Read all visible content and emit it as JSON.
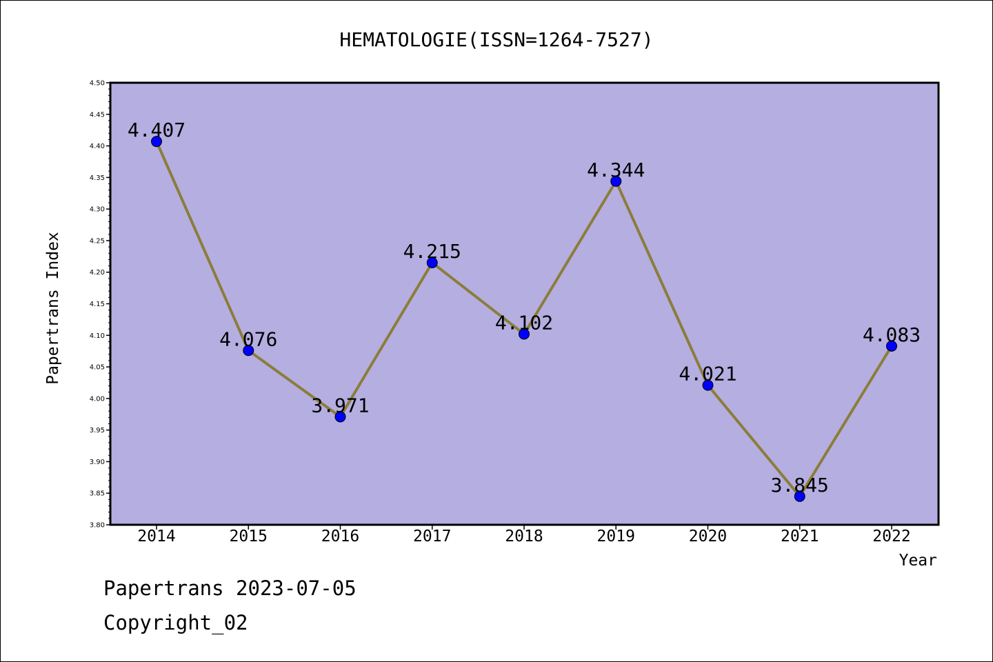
{
  "chart_data": {
    "type": "line",
    "title": "HEMATOLOGIE(ISSN=1264-7527)",
    "xlabel": "Year",
    "ylabel": "Papertrans Index",
    "categories": [
      "2014",
      "2015",
      "2016",
      "2017",
      "2018",
      "2019",
      "2020",
      "2021",
      "2022"
    ],
    "series": [
      {
        "values": [
          4.407,
          4.076,
          3.971,
          4.215,
          4.102,
          4.344,
          4.021,
          3.845,
          4.083
        ],
        "data_labels": [
          "4.407",
          "4.076",
          "3.971",
          "4.215",
          "4.102",
          "4.344",
          "4.021",
          "3.845",
          "4.083"
        ]
      }
    ],
    "ylim": [
      3.8,
      4.5
    ],
    "yticks": [
      "3.80",
      "3.85",
      "3.90",
      "3.95",
      "4.00",
      "4.05",
      "4.10",
      "4.15",
      "4.20",
      "4.25",
      "4.30",
      "4.35",
      "4.40",
      "4.45",
      "4.50"
    ],
    "grid": false,
    "colors": {
      "plot_background": "#b5aee1",
      "line": "#8b7d3a",
      "marker": "#0000ff"
    }
  },
  "footer": {
    "source": "Papertrans 2023-07-05",
    "copyright": "Copyright_02"
  }
}
